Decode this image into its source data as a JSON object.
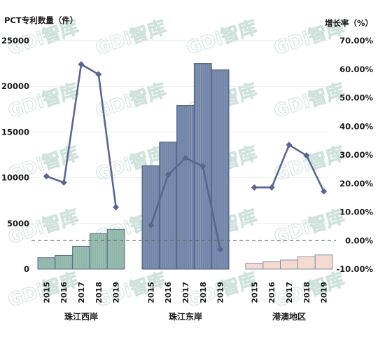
{
  "watermark": "GDi智库",
  "chart_data": {
    "type": "bar",
    "left_axis_title": "PCT专利数量（件）",
    "right_axis_title": "增长率（%）",
    "ylim": [
      0,
      25000
    ],
    "yticks": [
      0,
      5000,
      10000,
      15000,
      20000,
      25000
    ],
    "y2lim": [
      -10,
      70
    ],
    "y2ticks": [
      "-10.00%",
      "0.00%",
      "10.00%",
      "20.00%",
      "30.00%",
      "40.00%",
      "50.00%",
      "60.00%",
      "70.00%"
    ],
    "y2tick_values": [
      -10,
      0,
      10,
      20,
      30,
      40,
      50,
      60,
      70
    ],
    "groups": [
      {
        "name": "珠江西岸",
        "categories": [
          "2015",
          "2016",
          "2017",
          "2018",
          "2019"
        ],
        "values": [
          1250,
          1500,
          2500,
          3900,
          4350
        ],
        "growth": [
          22.5,
          20.3,
          61.7,
          58.2,
          11.7
        ],
        "bar_color": "#8fb6a8",
        "bar_stroke": "#5b6b8e"
      },
      {
        "name": "珠江东岸",
        "categories": [
          "2015",
          "2016",
          "2017",
          "2018",
          "2019"
        ],
        "values": [
          11300,
          13900,
          17900,
          22500,
          21800
        ],
        "growth": [
          5.3,
          23.0,
          28.9,
          26.0,
          -3.1
        ],
        "bar_color": "#7184a8",
        "bar_stroke": "#4e5a7c"
      },
      {
        "name": "港澳地区",
        "categories": [
          "2015",
          "2016",
          "2017",
          "2018",
          "2019"
        ],
        "values": [
          650,
          800,
          1000,
          1350,
          1550
        ],
        "growth": [
          18.6,
          18.6,
          33.5,
          29.8,
          17.2
        ],
        "bar_color": "#f4d9cc",
        "bar_stroke": "#8a8fb0"
      }
    ],
    "line_color": "#5b6690",
    "zero_line": "dashed",
    "grid": true
  }
}
